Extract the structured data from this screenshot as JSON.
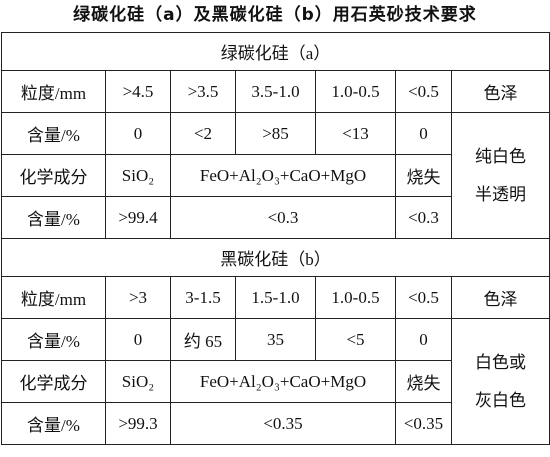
{
  "title": "绿碳化硅（a）及黑碳化硅（b）用石英砂技术要求",
  "sections": [
    {
      "heading": "绿碳化硅（a）",
      "rows": [
        [
          "粒度/mm",
          ">4.5",
          ">3.5",
          "3.5-1.0",
          "1.0-0.5",
          "<0.5",
          "色泽"
        ],
        [
          "含量/%",
          "0",
          "<2",
          ">85",
          "<13",
          "0"
        ],
        [
          "化学成分",
          "SiO₂",
          "FeO+Al₂O₃+CaO+MgO",
          "烧失"
        ],
        [
          "含量/%",
          ">99.4",
          "<0.3",
          "<0.3"
        ]
      ],
      "color": [
        "纯白色",
        "半透明"
      ]
    },
    {
      "heading": "黑碳化硅（b）",
      "rows": [
        [
          "粒度/mm",
          ">3",
          "3-1.5",
          "1.5-1.0",
          "1.0-0.5",
          "<0.5",
          "色泽"
        ],
        [
          "含量/%",
          "0",
          "约 65",
          "35",
          "<5",
          "0"
        ],
        [
          "化学成分",
          "SiO₂",
          "FeO+Al₂O₃+CaO+MgO",
          "烧失"
        ],
        [
          "含量/%",
          ">99.3",
          "<0.35",
          "<0.35"
        ]
      ],
      "color": [
        "白色或",
        "灰白色"
      ]
    }
  ]
}
